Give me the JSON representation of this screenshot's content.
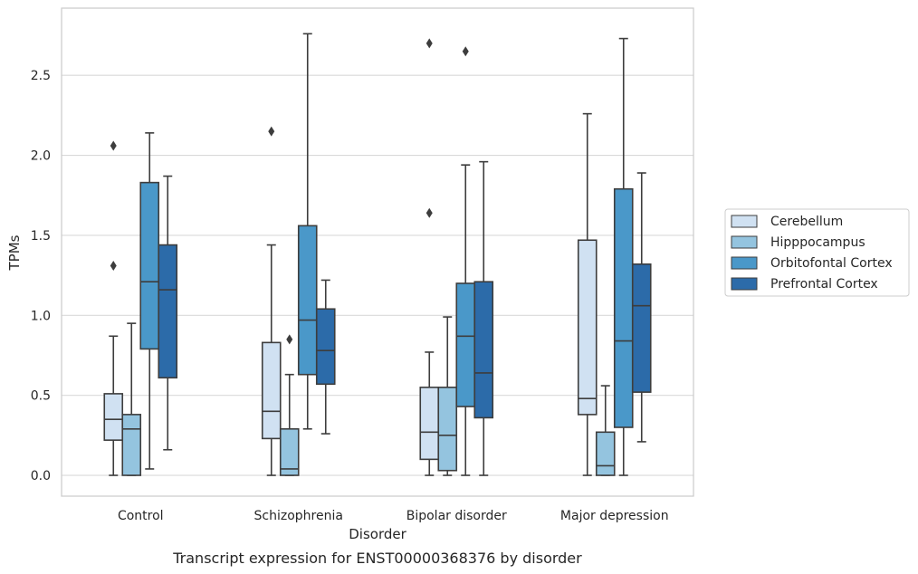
{
  "chart_data": {
    "type": "box",
    "caption": "Transcript expression for ENST00000368376 by disorder",
    "xlabel": "Disorder",
    "ylabel": "TPMs",
    "ylim": [
      -0.13,
      2.92
    ],
    "yticks": [
      "0.0",
      "0.5",
      "1.0",
      "1.5",
      "2.0",
      "2.5"
    ],
    "ytick_values": [
      0.0,
      0.5,
      1.0,
      1.5,
      2.0,
      2.5
    ],
    "categories": [
      "Control",
      "Schizophrenia",
      "Bipolar disorder",
      "Major depression"
    ],
    "grid": "horizontal",
    "legend_position": "right",
    "series": [
      {
        "name": "Cerebellum",
        "color": "#d0e1f2",
        "boxes": [
          {
            "whislo": 0.0,
            "q1": 0.22,
            "med": 0.35,
            "q3": 0.51,
            "whishi": 0.87,
            "fliers": [
              1.31,
              2.06
            ]
          },
          {
            "whislo": 0.0,
            "q1": 0.23,
            "med": 0.4,
            "q3": 0.83,
            "whishi": 1.44,
            "fliers": [
              2.15
            ]
          },
          {
            "whislo": 0.0,
            "q1": 0.1,
            "med": 0.27,
            "q3": 0.55,
            "whishi": 0.77,
            "fliers": [
              1.64,
              2.7
            ]
          },
          {
            "whislo": 0.0,
            "q1": 0.38,
            "med": 0.48,
            "q3": 1.47,
            "whishi": 2.26,
            "fliers": []
          }
        ]
      },
      {
        "name": "Hipppocampus",
        "color": "#94c4df",
        "boxes": [
          {
            "whislo": 0.0,
            "q1": 0.0,
            "med": 0.29,
            "q3": 0.38,
            "whishi": 0.95,
            "fliers": []
          },
          {
            "whislo": 0.0,
            "q1": 0.0,
            "med": 0.04,
            "q3": 0.29,
            "whishi": 0.63,
            "fliers": [
              0.85
            ]
          },
          {
            "whislo": 0.0,
            "q1": 0.03,
            "med": 0.25,
            "q3": 0.55,
            "whishi": 0.99,
            "fliers": []
          },
          {
            "whislo": 0.0,
            "q1": 0.0,
            "med": 0.06,
            "q3": 0.27,
            "whishi": 0.56,
            "fliers": []
          }
        ]
      },
      {
        "name": "Orbitofontal Cortex",
        "color": "#4a98c9",
        "boxes": [
          {
            "whislo": 0.04,
            "q1": 0.79,
            "med": 1.21,
            "q3": 1.83,
            "whishi": 2.14,
            "fliers": []
          },
          {
            "whislo": 0.29,
            "q1": 0.63,
            "med": 0.97,
            "q3": 1.56,
            "whishi": 2.76,
            "fliers": []
          },
          {
            "whislo": 0.0,
            "q1": 0.43,
            "med": 0.87,
            "q3": 1.2,
            "whishi": 1.94,
            "fliers": [
              2.65
            ]
          },
          {
            "whislo": 0.0,
            "q1": 0.3,
            "med": 0.84,
            "q3": 1.79,
            "whishi": 2.73,
            "fliers": []
          }
        ]
      },
      {
        "name": "Prefrontal Cortex",
        "color": "#2c6ba9",
        "boxes": [
          {
            "whislo": 0.16,
            "q1": 0.61,
            "med": 1.16,
            "q3": 1.44,
            "whishi": 1.87,
            "fliers": []
          },
          {
            "whislo": 0.26,
            "q1": 0.57,
            "med": 0.78,
            "q3": 1.04,
            "whishi": 1.22,
            "fliers": []
          },
          {
            "whislo": 0.0,
            "q1": 0.36,
            "med": 0.64,
            "q3": 1.21,
            "whishi": 1.96,
            "fliers": []
          },
          {
            "whislo": 0.21,
            "q1": 0.52,
            "med": 1.06,
            "q3": 1.32,
            "whishi": 1.89,
            "fliers": []
          }
        ]
      }
    ]
  }
}
